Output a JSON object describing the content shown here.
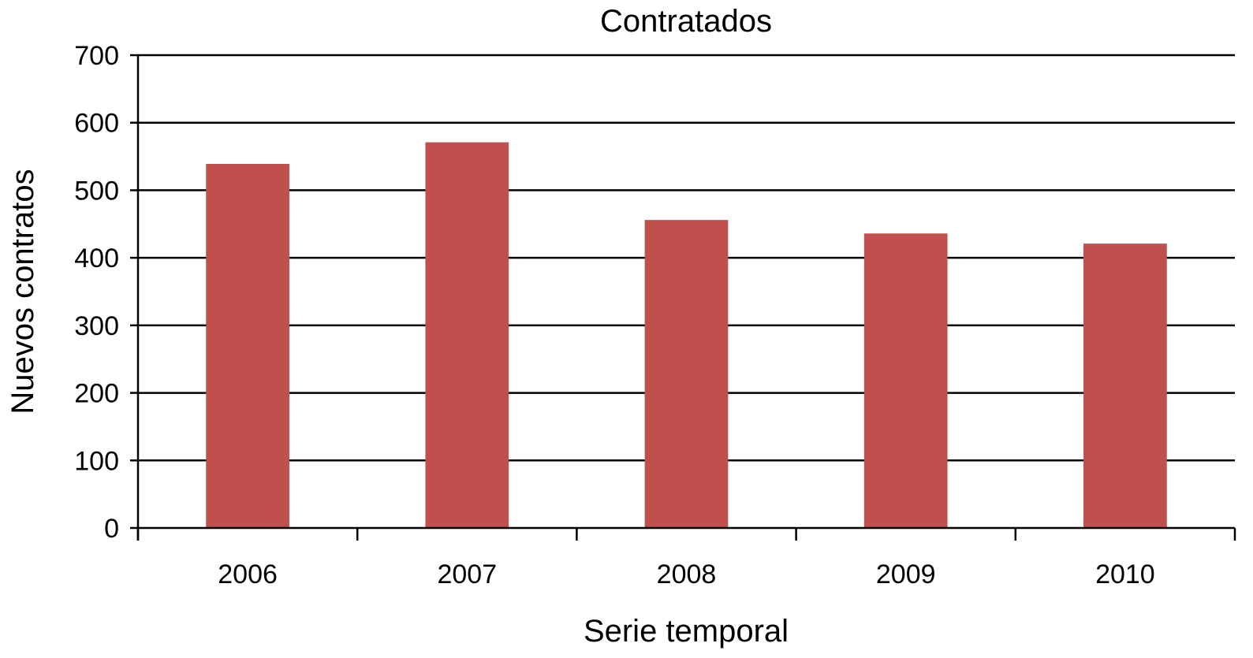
{
  "chart_data": {
    "type": "bar",
    "title": "Contratados",
    "xlabel": "Serie temporal",
    "ylabel": "Nuevos contratos",
    "categories": [
      "2006",
      "2007",
      "2008",
      "2009",
      "2010"
    ],
    "values": [
      539,
      571,
      456,
      436,
      421
    ],
    "ylim": [
      0,
      700
    ],
    "yticks": [
      0,
      100,
      200,
      300,
      400,
      500,
      600,
      700
    ],
    "grid": true,
    "legend": "none",
    "bar_color": "#c0504d"
  }
}
